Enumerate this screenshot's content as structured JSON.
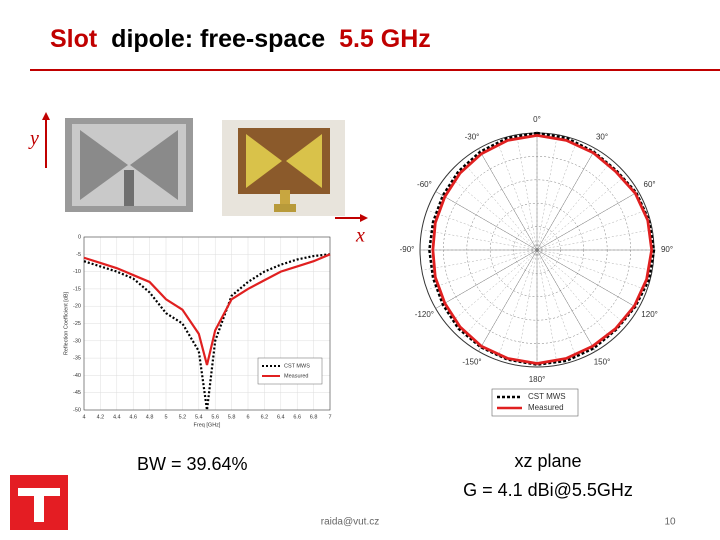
{
  "header": {
    "title_parts": [
      "Slot",
      "dipole: free-space",
      "5.5 GHz"
    ]
  },
  "labels": {
    "y_axis": "y",
    "x_axis": "x",
    "bandwidth": "BW = 39.64%",
    "plane": "xz plane",
    "gain": "G = 4.1 dBi@5.5GHz"
  },
  "footer": {
    "email": "raida@vut.cz",
    "page": 10
  },
  "chart_data": [
    {
      "type": "line",
      "x_label": "Freq [GHz]",
      "y_label": "Reflection Coefficient [dB]",
      "x": [
        4,
        4.2,
        4.4,
        4.6,
        4.8,
        5,
        5.2,
        5.4,
        5.5,
        5.6,
        5.8,
        6,
        6.2,
        6.4,
        6.6,
        6.8,
        7
      ],
      "series": [
        {
          "name": "CST MWS",
          "color": "#000000",
          "dash": true,
          "values": [
            -7,
            -8.5,
            -10,
            -12,
            -16,
            -22,
            -25,
            -33,
            -50,
            -30,
            -17,
            -13,
            -10,
            -8,
            -6.5,
            -5.5,
            -5
          ]
        },
        {
          "name": "Measured",
          "color": "#e02020",
          "dash": false,
          "values": [
            -6,
            -7.5,
            -9,
            -11,
            -13,
            -18,
            -21,
            -28,
            -37,
            -27,
            -18,
            -15,
            -12.5,
            -10,
            -8.5,
            -7,
            -5
          ]
        }
      ],
      "xlim": [
        4,
        7
      ],
      "ylim": [
        -50,
        0
      ],
      "xticks": [
        4,
        4.2,
        4.4,
        4.6,
        4.8,
        5,
        5.2,
        5.4,
        5.6,
        5.8,
        6,
        6.2,
        6.4,
        6.6,
        6.8,
        7
      ],
      "yticks": [
        0,
        -5,
        -10,
        -15,
        -20,
        -25,
        -30,
        -35,
        -40,
        -45,
        -50
      ],
      "grid": true
    },
    {
      "type": "polar",
      "theta": [
        0,
        15,
        30,
        45,
        60,
        75,
        90,
        105,
        120,
        135,
        150,
        165,
        180,
        195,
        210,
        225,
        240,
        255,
        270,
        285,
        300,
        315,
        330,
        345
      ],
      "rlim": [
        0,
        1
      ],
      "thetaticks": [
        {
          "value": 0,
          "label": "0°"
        },
        {
          "value": 30,
          "label": "30°"
        },
        {
          "value": 60,
          "label": "60°"
        },
        {
          "value": 90,
          "label": "90°"
        },
        {
          "value": 120,
          "label": "120°"
        },
        {
          "value": 150,
          "label": "150°"
        },
        {
          "value": 180,
          "label": "180°"
        },
        {
          "value": -150,
          "label": "-150°"
        },
        {
          "value": -120,
          "label": "-120°"
        },
        {
          "value": -90,
          "label": "-90°"
        },
        {
          "value": -60,
          "label": "-60°"
        },
        {
          "value": -30,
          "label": "-30°"
        }
      ],
      "series": [
        {
          "name": "CST MWS",
          "color": "#000000",
          "dash": true,
          "values": [
            1.0,
            0.99,
            0.97,
            0.96,
            0.98,
            0.99,
            1.0,
            0.99,
            0.97,
            0.96,
            0.97,
            0.98,
            0.98,
            0.97,
            0.96,
            0.95,
            0.93,
            0.92,
            0.92,
            0.92,
            0.93,
            0.95,
            0.97,
            0.99
          ]
        },
        {
          "name": "Measured",
          "color": "#e02020",
          "dash": false,
          "values": [
            0.98,
            0.97,
            0.96,
            0.95,
            0.97,
            0.98,
            0.98,
            0.97,
            0.96,
            0.95,
            0.95,
            0.96,
            0.97,
            0.96,
            0.95,
            0.93,
            0.91,
            0.9,
            0.89,
            0.9,
            0.91,
            0.93,
            0.95,
            0.97
          ]
        }
      ],
      "grid": true
    }
  ]
}
